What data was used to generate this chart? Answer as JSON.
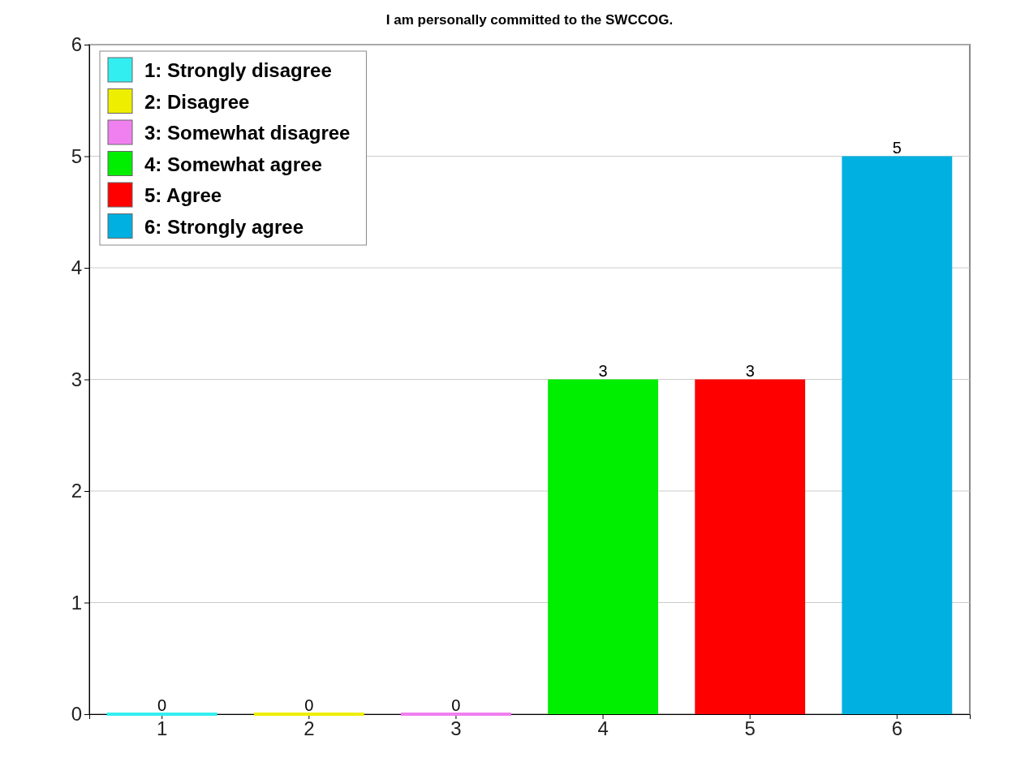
{
  "chart_data": {
    "type": "bar",
    "title": "I am personally committed to the SWCCOG.",
    "categories": [
      "1",
      "2",
      "3",
      "4",
      "5",
      "6"
    ],
    "series": [
      {
        "name": "1: Strongly disagree",
        "color": "#33eef0",
        "values": [
          0,
          null,
          null,
          null,
          null,
          null
        ]
      },
      {
        "name": "2: Disagree",
        "color": "#eeee00",
        "values": [
          null,
          0,
          null,
          null,
          null,
          null
        ]
      },
      {
        "name": "3: Somewhat disagree",
        "color": "#f080f0",
        "values": [
          null,
          null,
          0,
          null,
          null,
          null
        ]
      },
      {
        "name": "4: Somewhat agree",
        "color": "#00ee00",
        "values": [
          null,
          null,
          null,
          3,
          null,
          null
        ]
      },
      {
        "name": "5: Agree",
        "color": "#ff0000",
        "values": [
          null,
          null,
          null,
          null,
          3,
          null
        ]
      },
      {
        "name": "6: Strongly agree",
        "color": "#00b0e0",
        "values": [
          null,
          null,
          null,
          null,
          null,
          5
        ]
      }
    ],
    "ylim": [
      0,
      6
    ],
    "yticks": [
      0,
      1,
      2,
      3,
      4,
      5,
      6
    ],
    "grid": "y",
    "legend": "top left",
    "data_labels": true
  }
}
